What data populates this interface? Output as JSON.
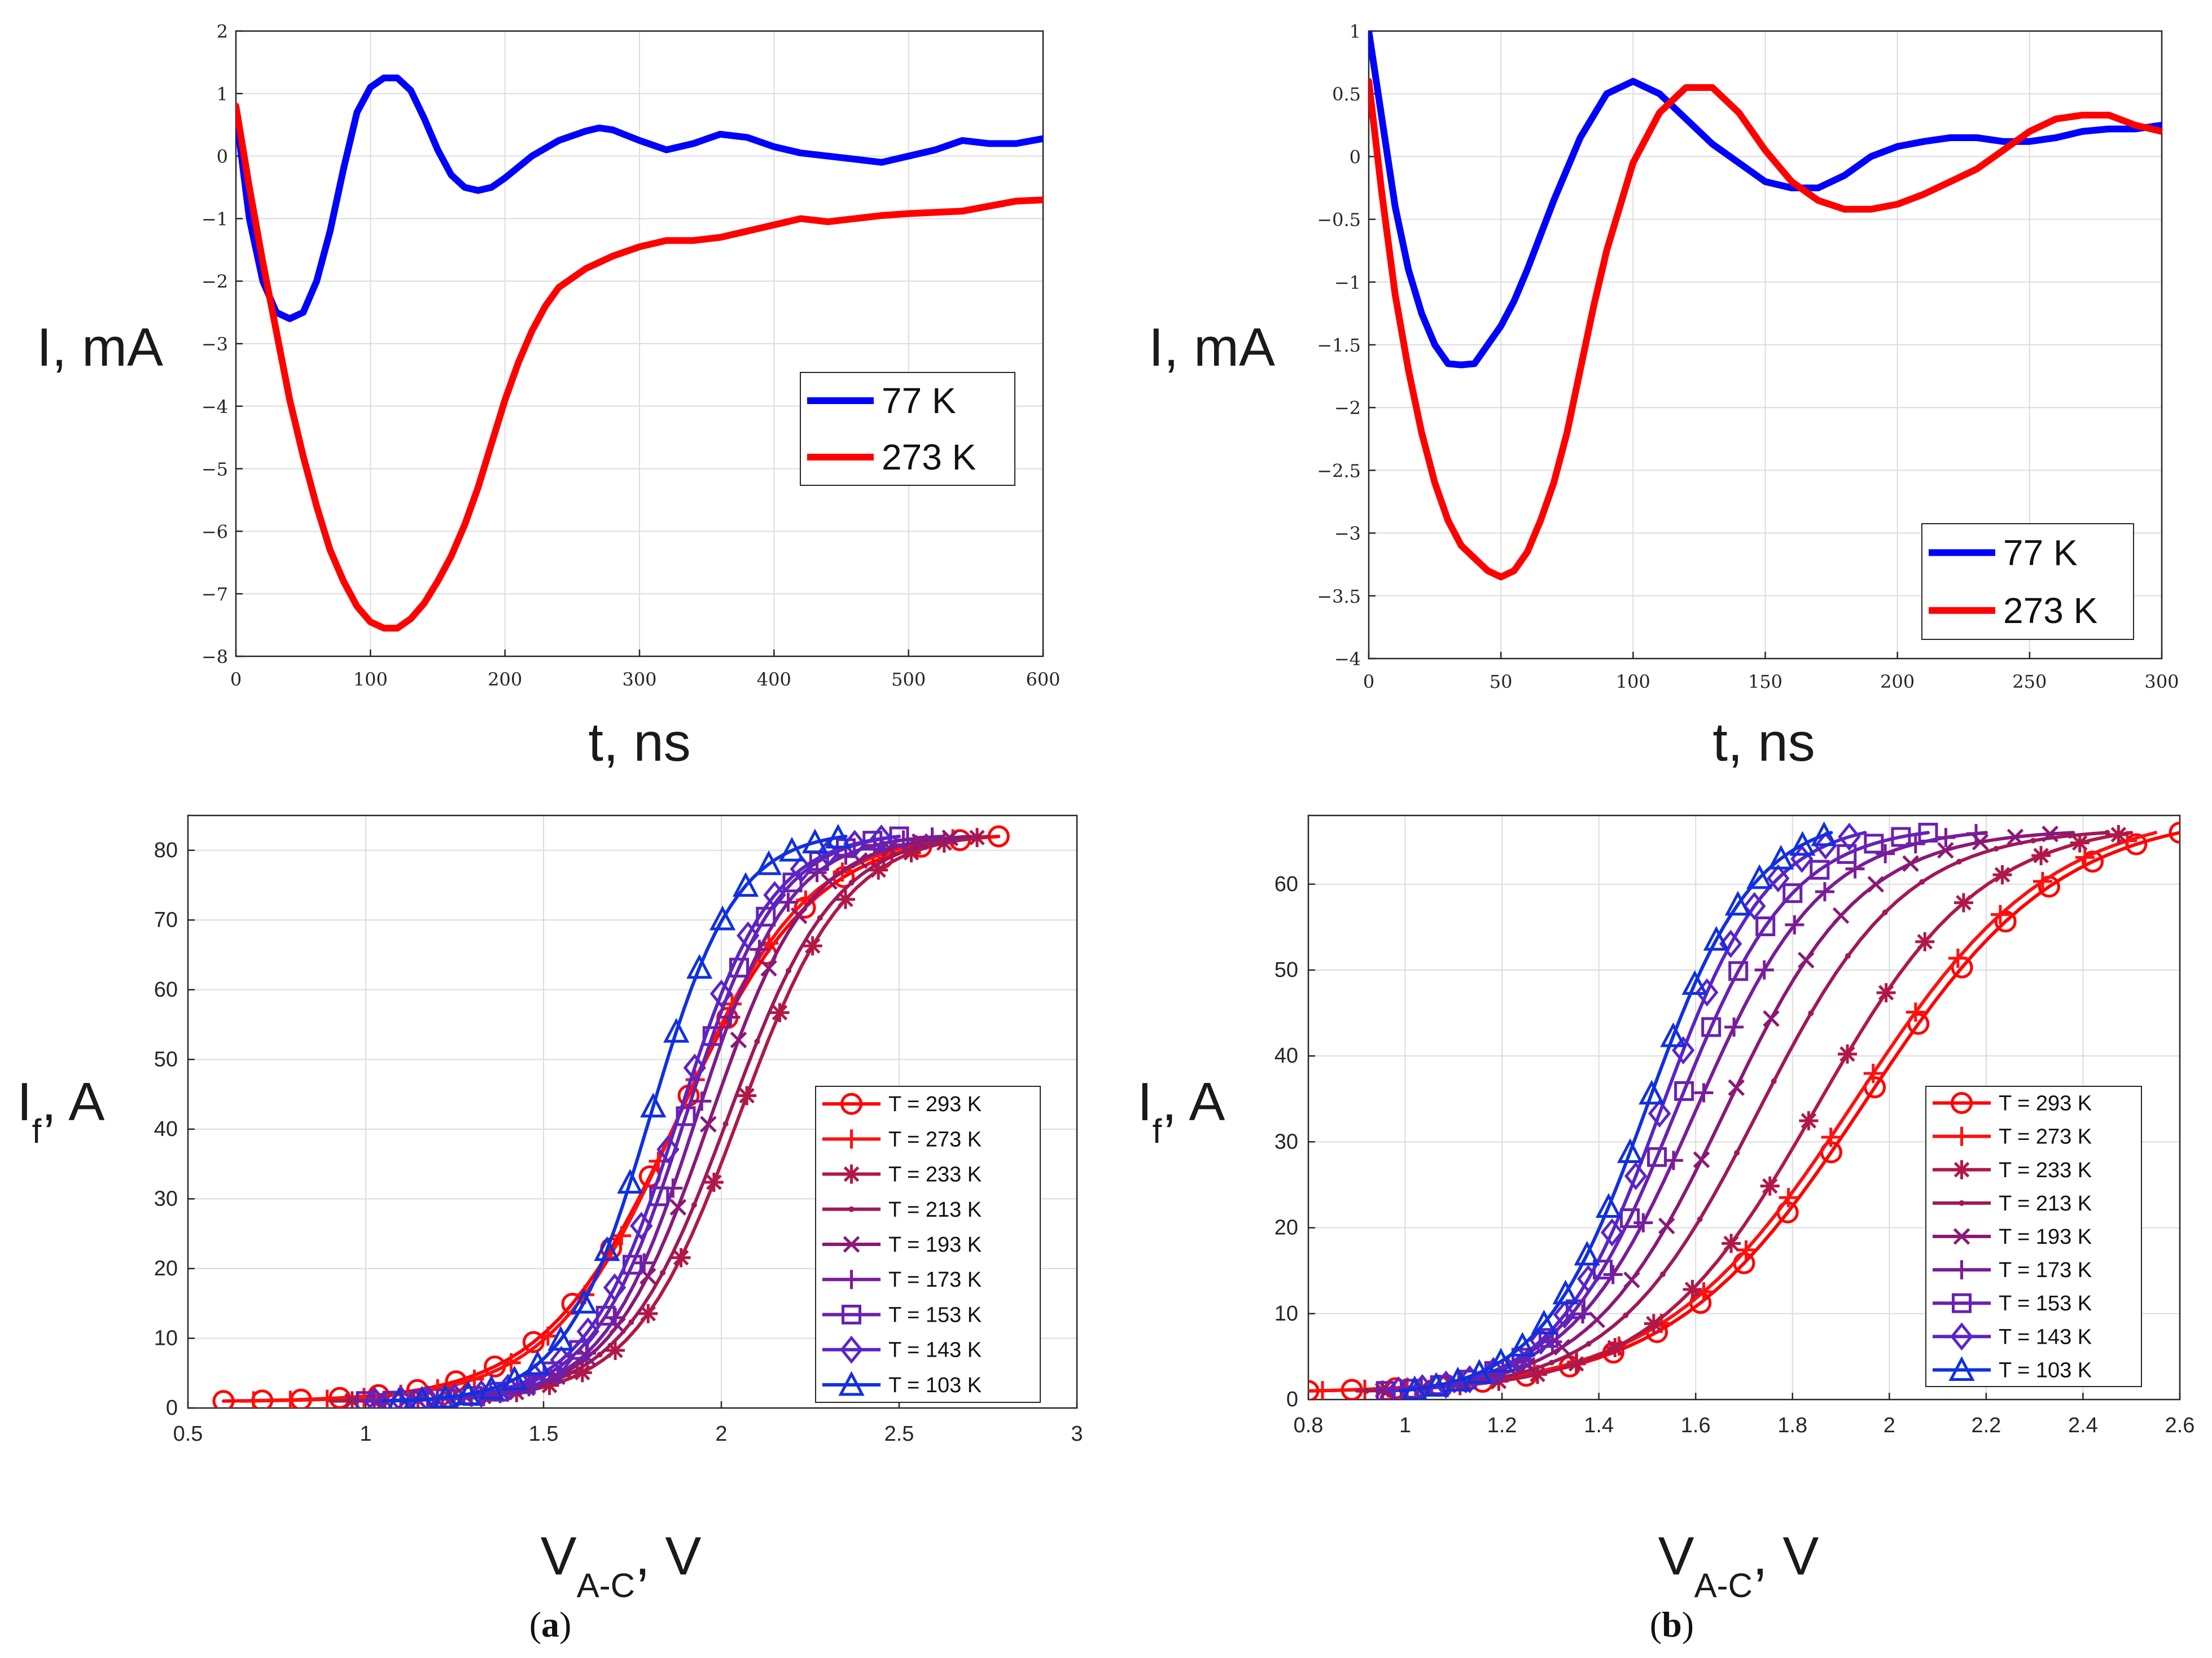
{
  "chart_data": [
    {
      "id": "a_top",
      "type": "line",
      "xlabel": "t, ns",
      "ylabel": "I, mA",
      "xlim": [
        0,
        600
      ],
      "ylim": [
        -8,
        2
      ],
      "xticks": [
        0,
        100,
        200,
        300,
        400,
        500,
        600
      ],
      "yticks": [
        -8,
        -7,
        -6,
        -5,
        -4,
        -3,
        -2,
        -1,
        0,
        1,
        2
      ],
      "grid": true,
      "legend_position": "middle-right",
      "series": [
        {
          "name": "77 K",
          "color": "#0000ff",
          "x": [
            0,
            10,
            20,
            30,
            40,
            50,
            60,
            70,
            80,
            90,
            100,
            110,
            120,
            130,
            140,
            150,
            160,
            170,
            180,
            190,
            200,
            220,
            240,
            260,
            270,
            280,
            300,
            320,
            340,
            360,
            380,
            400,
            420,
            440,
            460,
            480,
            500,
            520,
            540,
            560,
            580,
            600
          ],
          "y": [
            0.7,
            -1.0,
            -2.0,
            -2.5,
            -2.6,
            -2.5,
            -2.0,
            -1.2,
            -0.2,
            0.7,
            1.1,
            1.25,
            1.25,
            1.05,
            0.6,
            0.1,
            -0.3,
            -0.5,
            -0.55,
            -0.5,
            -0.35,
            0.0,
            0.25,
            0.4,
            0.45,
            0.42,
            0.25,
            0.1,
            0.2,
            0.35,
            0.3,
            0.15,
            0.05,
            0.0,
            -0.05,
            -0.1,
            0.0,
            0.1,
            0.25,
            0.2,
            0.2,
            0.28
          ]
        },
        {
          "name": "273 K",
          "color": "#ff0000",
          "x": [
            0,
            10,
            20,
            30,
            40,
            50,
            60,
            70,
            80,
            90,
            100,
            110,
            120,
            130,
            140,
            150,
            160,
            170,
            180,
            190,
            200,
            210,
            220,
            230,
            240,
            260,
            270,
            280,
            300,
            320,
            340,
            360,
            380,
            400,
            420,
            440,
            460,
            480,
            500,
            520,
            540,
            560,
            580,
            600
          ],
          "y": [
            0.8,
            -0.5,
            -1.7,
            -2.8,
            -3.9,
            -4.8,
            -5.6,
            -6.3,
            -6.8,
            -7.2,
            -7.45,
            -7.55,
            -7.55,
            -7.4,
            -7.15,
            -6.8,
            -6.4,
            -5.9,
            -5.3,
            -4.6,
            -3.9,
            -3.3,
            -2.8,
            -2.4,
            -2.1,
            -1.8,
            -1.7,
            -1.6,
            -1.45,
            -1.35,
            -1.35,
            -1.3,
            -1.2,
            -1.1,
            -1.0,
            -1.05,
            -1.0,
            -0.95,
            -0.92,
            -0.9,
            -0.88,
            -0.8,
            -0.72,
            -0.7
          ]
        }
      ]
    },
    {
      "id": "b_top",
      "type": "line",
      "xlabel": "t, ns",
      "ylabel": "I, mA",
      "xlim": [
        0,
        300
      ],
      "ylim": [
        -4,
        1
      ],
      "xticks": [
        0,
        50,
        100,
        150,
        200,
        250,
        300
      ],
      "yticks": [
        -4,
        -3.5,
        -3,
        -2.5,
        -2,
        -1.5,
        -1,
        -0.5,
        0,
        0.5,
        1
      ],
      "grid": true,
      "legend_position": "bottom-right",
      "series": [
        {
          "name": "77 K",
          "color": "#0000ff",
          "x": [
            0,
            5,
            10,
            15,
            20,
            25,
            30,
            35,
            40,
            45,
            50,
            55,
            60,
            70,
            80,
            90,
            100,
            110,
            120,
            130,
            140,
            150,
            160,
            170,
            180,
            190,
            200,
            210,
            220,
            230,
            240,
            250,
            260,
            270,
            280,
            290,
            300
          ],
          "y": [
            1.0,
            0.3,
            -0.4,
            -0.9,
            -1.25,
            -1.5,
            -1.65,
            -1.66,
            -1.65,
            -1.5,
            -1.35,
            -1.15,
            -0.9,
            -0.35,
            0.15,
            0.5,
            0.6,
            0.5,
            0.3,
            0.1,
            -0.05,
            -0.2,
            -0.25,
            -0.25,
            -0.15,
            0.0,
            0.08,
            0.12,
            0.15,
            0.15,
            0.12,
            0.12,
            0.15,
            0.2,
            0.22,
            0.22,
            0.25
          ]
        },
        {
          "name": "273 K",
          "color": "#ff0000",
          "x": [
            0,
            5,
            10,
            15,
            20,
            25,
            30,
            35,
            40,
            45,
            50,
            55,
            60,
            65,
            70,
            75,
            80,
            85,
            90,
            95,
            100,
            110,
            120,
            130,
            140,
            150,
            160,
            170,
            180,
            190,
            200,
            210,
            220,
            230,
            240,
            250,
            260,
            270,
            280,
            290,
            300
          ],
          "y": [
            0.6,
            -0.3,
            -1.1,
            -1.7,
            -2.2,
            -2.6,
            -2.9,
            -3.1,
            -3.2,
            -3.3,
            -3.35,
            -3.3,
            -3.15,
            -2.9,
            -2.6,
            -2.2,
            -1.7,
            -1.2,
            -0.75,
            -0.4,
            -0.05,
            0.35,
            0.55,
            0.55,
            0.35,
            0.05,
            -0.2,
            -0.35,
            -0.42,
            -0.42,
            -0.38,
            -0.3,
            -0.2,
            -0.1,
            0.05,
            0.2,
            0.3,
            0.33,
            0.33,
            0.25,
            0.2
          ]
        }
      ]
    },
    {
      "id": "a_bottom",
      "type": "line",
      "xlabel": "V",
      "xlabel_sub": "A-C",
      "xlabel_suffix": ", V",
      "ylabel": "I",
      "ylabel_sub": "f",
      "ylabel_suffix": ", A",
      "xlim": [
        0.5,
        3
      ],
      "ylim": [
        0,
        85
      ],
      "xticks": [
        0.5,
        1,
        1.5,
        2,
        2.5,
        3
      ],
      "yticks": [
        0,
        10,
        20,
        30,
        40,
        50,
        60,
        70,
        80
      ],
      "grid": true,
      "legend_position": "bottom-right",
      "series": [
        {
          "name": "T = 293 K",
          "color": "#ff0000",
          "marker": "circle",
          "x0": 0.6,
          "x50": 1.88,
          "s": 0.19,
          "xend": 2.78,
          "ymax": 82
        },
        {
          "name": "T = 273 K",
          "color": "#ff1010",
          "marker": "plus",
          "x0": 0.65,
          "x50": 1.88,
          "s": 0.18,
          "xend": 2.72,
          "ymax": 82
        },
        {
          "name": "T = 233 K",
          "color": "#b01848",
          "marker": "asterisk",
          "x0": 0.9,
          "x50": 2.05,
          "s": 0.15,
          "xend": 2.75,
          "ymax": 82
        },
        {
          "name": "T = 213 K",
          "color": "#a01858",
          "marker": "point",
          "x0": 0.95,
          "x50": 2.02,
          "s": 0.15,
          "xend": 2.72,
          "ymax": 82
        },
        {
          "name": "T = 193 K",
          "color": "#8a1878",
          "marker": "cross",
          "x0": 1.0,
          "x50": 1.97,
          "s": 0.14,
          "xend": 2.7,
          "ymax": 82
        },
        {
          "name": "T = 173 K",
          "color": "#7a1c98",
          "marker": "plus",
          "x0": 1.0,
          "x50": 1.93,
          "s": 0.13,
          "xend": 2.62,
          "ymax": 82
        },
        {
          "name": "T = 153 K",
          "color": "#6a20b0",
          "marker": "square",
          "x0": 1.0,
          "x50": 1.9,
          "s": 0.13,
          "xend": 2.5,
          "ymax": 82
        },
        {
          "name": "T = 143 K",
          "color": "#5a24c8",
          "marker": "diamond",
          "x0": 1.0,
          "x50": 1.88,
          "s": 0.13,
          "xend": 2.5,
          "ymax": 82
        },
        {
          "name": "T = 103 K",
          "color": "#1030e0",
          "marker": "triangle",
          "x0": 1.05,
          "x50": 1.8,
          "s": 0.12,
          "xend": 2.35,
          "ymax": 82
        }
      ]
    },
    {
      "id": "b_bottom",
      "type": "line",
      "xlabel": "V",
      "xlabel_sub": "A-C",
      "xlabel_suffix": ", V",
      "ylabel": "I",
      "ylabel_sub": "f",
      "ylabel_suffix": ", A",
      "xlim": [
        0.8,
        2.6
      ],
      "ylim": [
        0,
        68
      ],
      "xticks": [
        0.8,
        1,
        1.2,
        1.4,
        1.6,
        1.8,
        2,
        2.2,
        2.4,
        2.6
      ],
      "yticks": [
        0,
        10,
        20,
        30,
        40,
        50,
        60
      ],
      "grid": true,
      "legend_position": "bottom-right",
      "series": [
        {
          "name": "T = 293 K",
          "color": "#ff0000",
          "marker": "circle",
          "x0": 0.8,
          "x50": 1.95,
          "s": 0.2,
          "xend": 2.6,
          "ymax": 66
        },
        {
          "name": "T = 273 K",
          "color": "#ff1010",
          "marker": "plus",
          "x0": 0.8,
          "x50": 1.93,
          "s": 0.2,
          "xend": 2.55,
          "ymax": 66
        },
        {
          "name": "T = 233 K",
          "color": "#b01848",
          "marker": "asterisk",
          "x0": 0.9,
          "x50": 1.85,
          "s": 0.17,
          "xend": 2.5,
          "ymax": 66
        },
        {
          "name": "T = 213 K",
          "color": "#a01858",
          "marker": "point",
          "x0": 0.92,
          "x50": 1.73,
          "s": 0.15,
          "xend": 2.45,
          "ymax": 66
        },
        {
          "name": "T = 193 K",
          "color": "#8a1878",
          "marker": "cross",
          "x0": 0.94,
          "x50": 1.66,
          "s": 0.14,
          "xend": 2.38,
          "ymax": 66
        },
        {
          "name": "T = 173 K",
          "color": "#7a1c98",
          "marker": "plus",
          "x0": 0.95,
          "x50": 1.6,
          "s": 0.13,
          "xend": 2.2,
          "ymax": 66
        },
        {
          "name": "T = 153 K",
          "color": "#6a20b0",
          "marker": "square",
          "x0": 0.96,
          "x50": 1.56,
          "s": 0.12,
          "xend": 2.08,
          "ymax": 66
        },
        {
          "name": "T = 143 K",
          "color": "#5a24c8",
          "marker": "diamond",
          "x0": 0.97,
          "x50": 1.53,
          "s": 0.11,
          "xend": 1.95,
          "ymax": 66
        },
        {
          "name": "T = 103 K",
          "color": "#1030e0",
          "marker": "triangle",
          "x0": 0.99,
          "x50": 1.5,
          "s": 0.11,
          "xend": 1.88,
          "ymax": 66
        }
      ]
    }
  ],
  "captions": {
    "a": {
      "open": "(",
      "letter": "a",
      "close": ")"
    },
    "b": {
      "open": "(",
      "letter": "b",
      "close": ")"
    }
  }
}
